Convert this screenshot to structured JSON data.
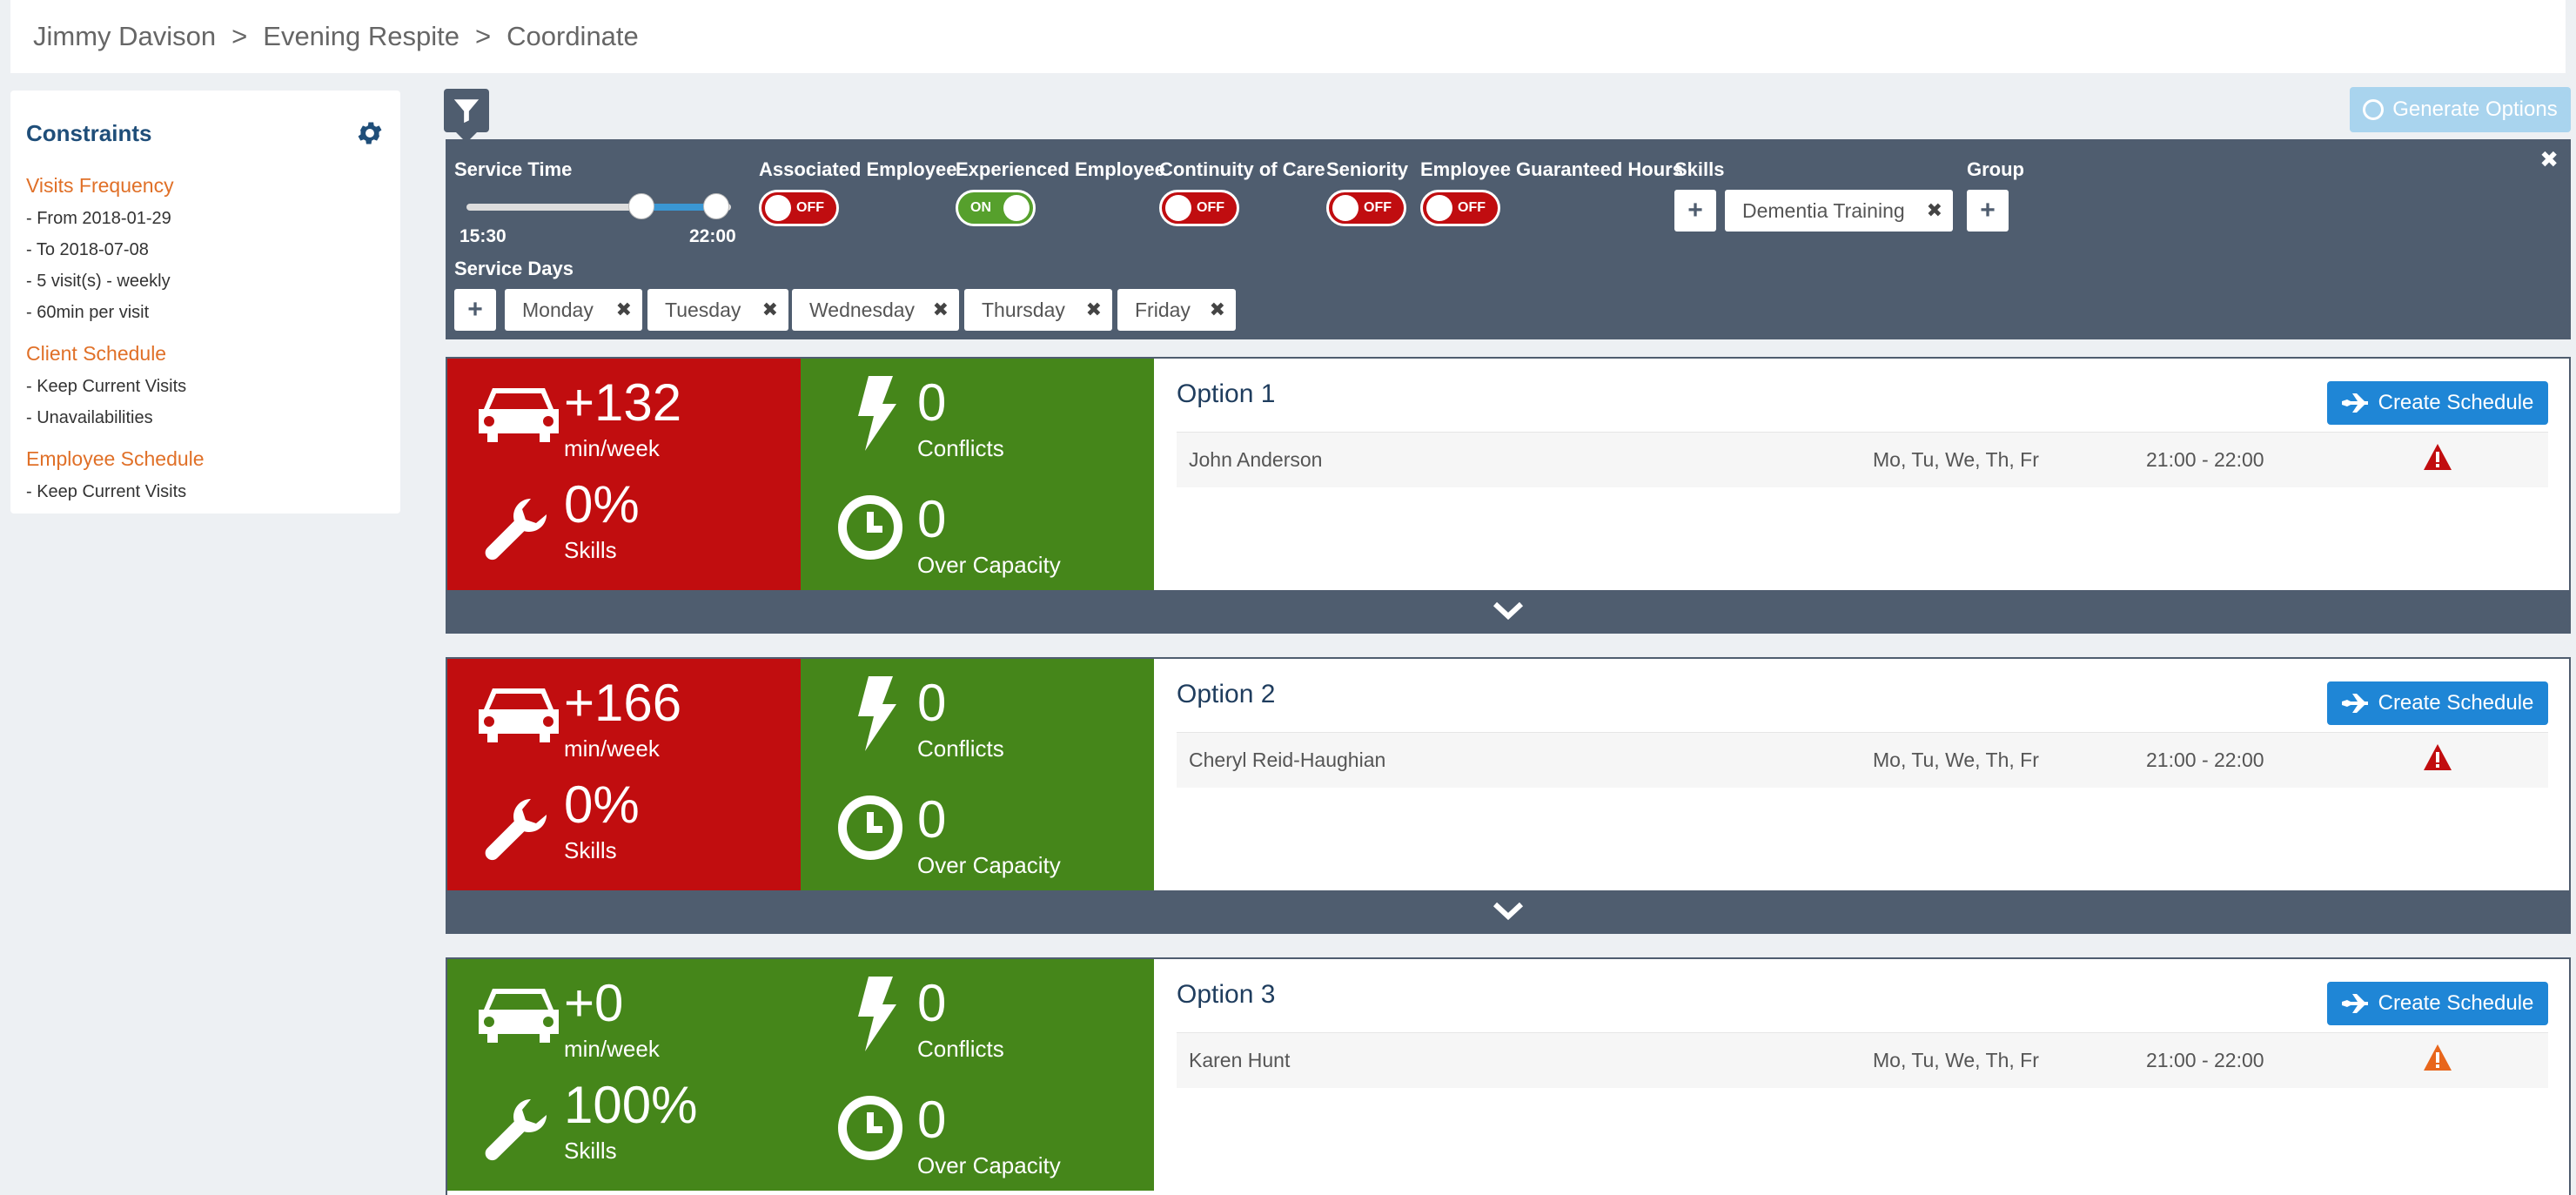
{
  "breadcrumb": [
    "Jimmy Davison",
    "Evening Respite",
    "Coordinate"
  ],
  "breadcrumb_sep": ">",
  "sidebar": {
    "title": "Constraints",
    "sections": [
      {
        "title": "Visits Frequency",
        "lines": [
          "- From 2018-01-29",
          "- To 2018-07-08",
          "- 5 visit(s) - weekly",
          "- 60min per visit"
        ]
      },
      {
        "title": "Client Schedule",
        "lines": [
          "- Keep Current Visits",
          "- Unavailabilities"
        ]
      },
      {
        "title": "Employee Schedule",
        "lines": [
          "- Keep Current Visits"
        ]
      }
    ]
  },
  "toolbar": {
    "generate_label": "Generate Options"
  },
  "filters": {
    "close": "✖",
    "service_time": {
      "label": "Service Time",
      "start": "15:30",
      "end": "22:00"
    },
    "toggles": [
      {
        "label": "Associated Employee",
        "state": "OFF"
      },
      {
        "label": "Experienced Employee",
        "state": "ON"
      },
      {
        "label": "Continuity of Care",
        "state": "OFF"
      },
      {
        "label": "Seniority",
        "state": "OFF"
      },
      {
        "label": "Employee Guaranteed Hours",
        "state": "OFF"
      }
    ],
    "skills": {
      "label": "Skills",
      "chips": [
        "Dementia Training"
      ]
    },
    "group": {
      "label": "Group"
    },
    "service_days": {
      "label": "Service Days",
      "chips": [
        "Monday",
        "Tuesday",
        "Wednesday",
        "Thursday",
        "Friday"
      ]
    }
  },
  "colors": {
    "red": "#c10d0f",
    "green": "#45861a",
    "panel": "#4f5d6f",
    "accent": "#1f86d6",
    "warn_red": "#c10d0f",
    "warn_orange": "#e8661c"
  },
  "options": [
    {
      "title": "Option 1",
      "travel": "+132",
      "travel_unit": "min/week",
      "skills": "0%",
      "skills_label": "Skills",
      "conflicts": "0",
      "conflicts_label": "Conflicts",
      "capacity": "0",
      "capacity_label": "Over Capacity",
      "travel_color": "red",
      "skills_color": "red",
      "create_label": "Create Schedule",
      "row": {
        "name": "John Anderson",
        "days": "Mo, Tu, We, Th, Fr",
        "time": "21:00 - 22:00",
        "warning": "warn_red"
      }
    },
    {
      "title": "Option 2",
      "travel": "+166",
      "travel_unit": "min/week",
      "skills": "0%",
      "skills_label": "Skills",
      "conflicts": "0",
      "conflicts_label": "Conflicts",
      "capacity": "0",
      "capacity_label": "Over Capacity",
      "travel_color": "red",
      "skills_color": "red",
      "create_label": "Create Schedule",
      "row": {
        "name": "Cheryl Reid-Haughian",
        "days": "Mo, Tu, We, Th, Fr",
        "time": "21:00 - 22:00",
        "warning": "warn_red"
      }
    },
    {
      "title": "Option 3",
      "travel": "+0",
      "travel_unit": "min/week",
      "skills": "100%",
      "skills_label": "Skills",
      "conflicts": "0",
      "conflicts_label": "Conflicts",
      "capacity": "0",
      "capacity_label": "Over Capacity",
      "travel_color": "green",
      "skills_color": "green",
      "create_label": "Create Schedule",
      "row": {
        "name": "Karen Hunt",
        "days": "Mo, Tu, We, Th, Fr",
        "time": "21:00 - 22:00",
        "warning": "warn_orange"
      }
    }
  ]
}
